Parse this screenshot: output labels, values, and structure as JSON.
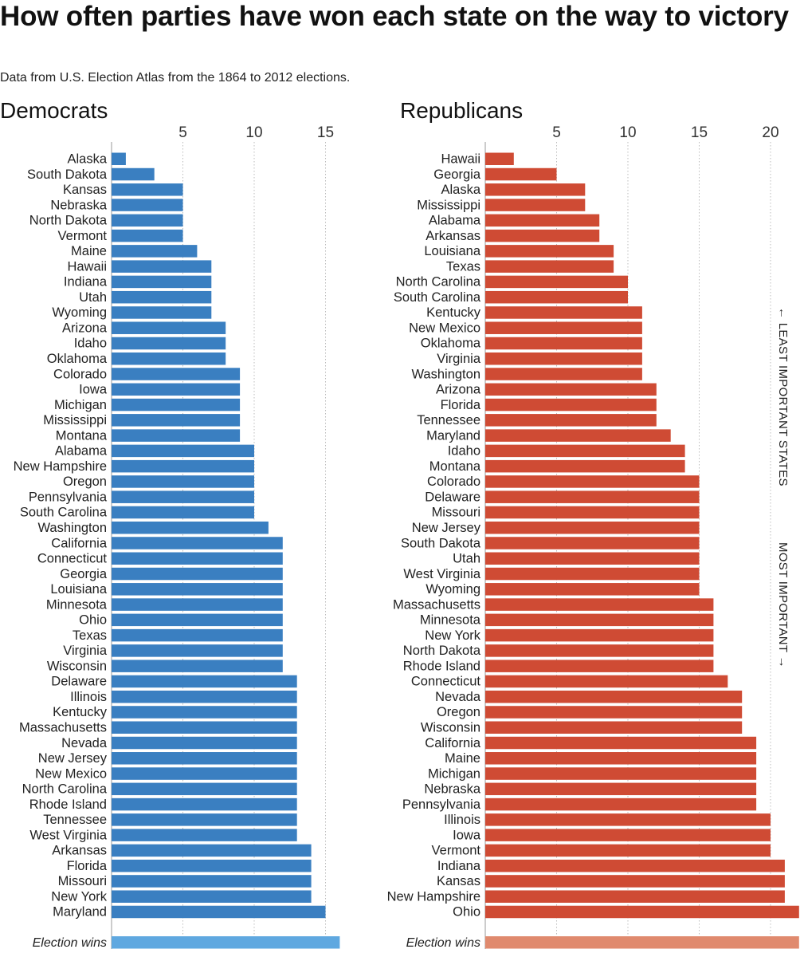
{
  "title": "How often parties have won each state on the way to victory",
  "subtitle": "Data from U.S. Election Atlas from the 1864 to 2012 elections.",
  "side_labels": {
    "least": "← LEAST IMPORTANT STATES",
    "most": "MOST IMPORTANT →"
  },
  "colors": {
    "democrats": "#3a7fc1",
    "democrats_total": "#5fa8e0",
    "republicans": "#cf4b34",
    "republicans_total": "#e08a6e"
  },
  "chart_data": [
    {
      "type": "bar",
      "orientation": "horizontal",
      "title": "Democrats",
      "xlim": [
        0,
        16
      ],
      "x_ticks": [
        5,
        10,
        15
      ],
      "grid": true,
      "categories": [
        "Alaska",
        "South Dakota",
        "Kansas",
        "Nebraska",
        "North Dakota",
        "Vermont",
        "Maine",
        "Hawaii",
        "Indiana",
        "Utah",
        "Wyoming",
        "Arizona",
        "Idaho",
        "Oklahoma",
        "Colorado",
        "Iowa",
        "Michigan",
        "Mississippi",
        "Montana",
        "Alabama",
        "New Hampshire",
        "Oregon",
        "Pennsylvania",
        "South Carolina",
        "Washington",
        "California",
        "Connecticut",
        "Georgia",
        "Louisiana",
        "Minnesota",
        "Ohio",
        "Texas",
        "Virginia",
        "Wisconsin",
        "Delaware",
        "Illinois",
        "Kentucky",
        "Massachusetts",
        "Nevada",
        "New Jersey",
        "New Mexico",
        "North Carolina",
        "Rhode Island",
        "Tennessee",
        "West Virginia",
        "Arkansas",
        "Florida",
        "Missouri",
        "New York",
        "Maryland"
      ],
      "values": [
        1,
        3,
        5,
        5,
        5,
        5,
        6,
        7,
        7,
        7,
        7,
        8,
        8,
        8,
        9,
        9,
        9,
        9,
        9,
        10,
        10,
        10,
        10,
        10,
        11,
        12,
        12,
        12,
        12,
        12,
        12,
        12,
        12,
        12,
        13,
        13,
        13,
        13,
        13,
        13,
        13,
        13,
        13,
        13,
        13,
        14,
        14,
        14,
        14,
        15
      ],
      "total": {
        "label": "Election wins",
        "value": 16
      }
    },
    {
      "type": "bar",
      "orientation": "horizontal",
      "title": "Republicans",
      "xlim": [
        0,
        22
      ],
      "x_ticks": [
        5,
        10,
        15,
        20
      ],
      "grid": true,
      "categories": [
        "Hawaii",
        "Georgia",
        "Alaska",
        "Mississippi",
        "Alabama",
        "Arkansas",
        "Louisiana",
        "Texas",
        "North Carolina",
        "South Carolina",
        "Kentucky",
        "New Mexico",
        "Oklahoma",
        "Virginia",
        "Washington",
        "Arizona",
        "Florida",
        "Tennessee",
        "Maryland",
        "Idaho",
        "Montana",
        "Colorado",
        "Delaware",
        "Missouri",
        "New Jersey",
        "South Dakota",
        "Utah",
        "West Virginia",
        "Wyoming",
        "Massachusetts",
        "Minnesota",
        "New York",
        "North Dakota",
        "Rhode Island",
        "Connecticut",
        "Nevada",
        "Oregon",
        "Wisconsin",
        "California",
        "Maine",
        "Michigan",
        "Nebraska",
        "Pennsylvania",
        "Illinois",
        "Iowa",
        "Vermont",
        "Indiana",
        "Kansas",
        "New Hampshire",
        "Ohio"
      ],
      "values": [
        2,
        5,
        7,
        7,
        8,
        8,
        9,
        9,
        10,
        10,
        11,
        11,
        11,
        11,
        11,
        12,
        12,
        12,
        13,
        14,
        14,
        15,
        15,
        15,
        15,
        15,
        15,
        15,
        15,
        16,
        16,
        16,
        16,
        16,
        17,
        18,
        18,
        18,
        19,
        19,
        19,
        19,
        19,
        20,
        20,
        20,
        21,
        21,
        21,
        22
      ],
      "total": {
        "label": "Election wins",
        "value": 22
      }
    }
  ]
}
